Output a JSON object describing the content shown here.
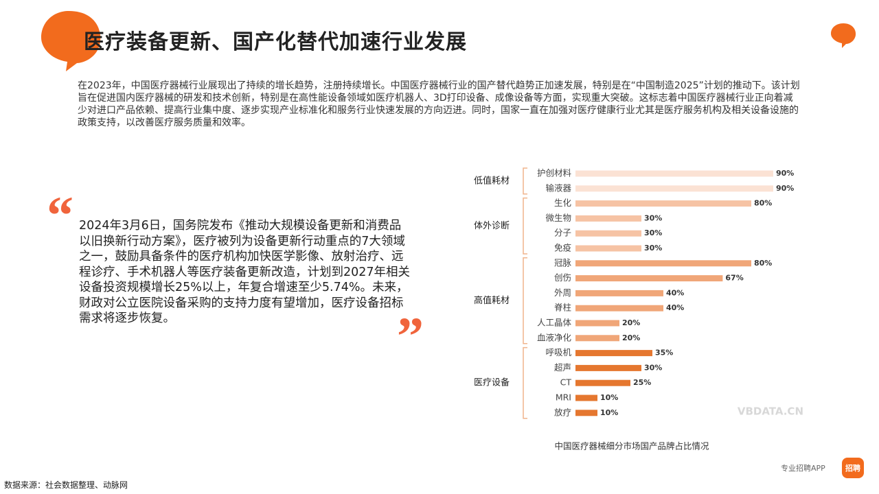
{
  "title": "医疗装备更新、国产化替代加速行业发展",
  "paragraph": "在2023年，中国医疗器械行业展现出了持续的增长趋势，注册持续增长。中国医疗器械行业的国产替代趋势正加速发展，特别是在“中国制造2025”计划的推动下。该计划旨在促进国内医疗器械的研发和技术创新，特别是在高性能设备领域如医疗机器人、3D打印设备、成像设备等方面，实现重大突破。这标志着中国医疗器械行业正向着减少对进口产品依赖、提高行业集中度、逐步实现产业标准化和服务行业快速发展的方向迈进。同时，国家一直在加强对医疗健康行业尤其是医疗服务机构及相关设备设施的政策支持，以改善医疗服务质量和效率。",
  "quote": "2024年3月6日，国务院发布《推动大规模设备更新和消费品以旧换新行动方案》，医疗被列为设备更新行动重点的7大领域之一，鼓励具备条件的医疗机构加快医学影像、放射治疗、远程诊疗、手术机器人等医疗装备更新改造，计划到2027年相关设备投资规模增长25%以上，年复合增速至少5.74%。未来，财政对公立医院设备采购的支持力度有望增加，医疗设备招标需求将逐步恢复。",
  "source": "数据来源：社会数据整理、动脉网",
  "footer": "专业招聘APP",
  "logo": "招聘",
  "chart_data": {
    "type": "bar",
    "orientation": "horizontal",
    "caption": "中国医疗器械细分市场国产品牌占比情况",
    "watermark": "VBDATA.CN",
    "xlim": [
      0,
      100
    ],
    "series": [
      {
        "name": "低值耗材",
        "color": "#fbe2d4",
        "categories": [
          "护创材料",
          "输液器"
        ],
        "values": [
          90,
          90
        ],
        "value_labels": [
          "90%",
          "90%"
        ]
      },
      {
        "name": "体外诊断",
        "color": "#f6c3a4",
        "categories": [
          "生化",
          "微生物",
          "分子",
          "免疫"
        ],
        "values": [
          80,
          30,
          30,
          30
        ],
        "value_labels": [
          "80%",
          "30%",
          "30%",
          "30%"
        ]
      },
      {
        "name": "高值耗材",
        "color": "#f0a678",
        "categories": [
          "冠脉",
          "创伤",
          "外周",
          "脊柱",
          "人工晶体",
          "血液净化"
        ],
        "values": [
          80,
          67,
          40,
          40,
          20,
          20
        ],
        "value_labels": [
          "80%",
          "67%",
          "40%",
          "40%",
          "20%",
          "20%"
        ]
      },
      {
        "name": "医疗设备",
        "color": "#e5772f",
        "categories": [
          "呼吸机",
          "超声",
          "CT",
          "MRI",
          "放疗"
        ],
        "values": [
          35,
          30,
          25,
          10,
          10
        ],
        "value_labels": [
          "35%",
          "30%",
          "25%",
          "10%",
          "10%"
        ]
      }
    ]
  }
}
